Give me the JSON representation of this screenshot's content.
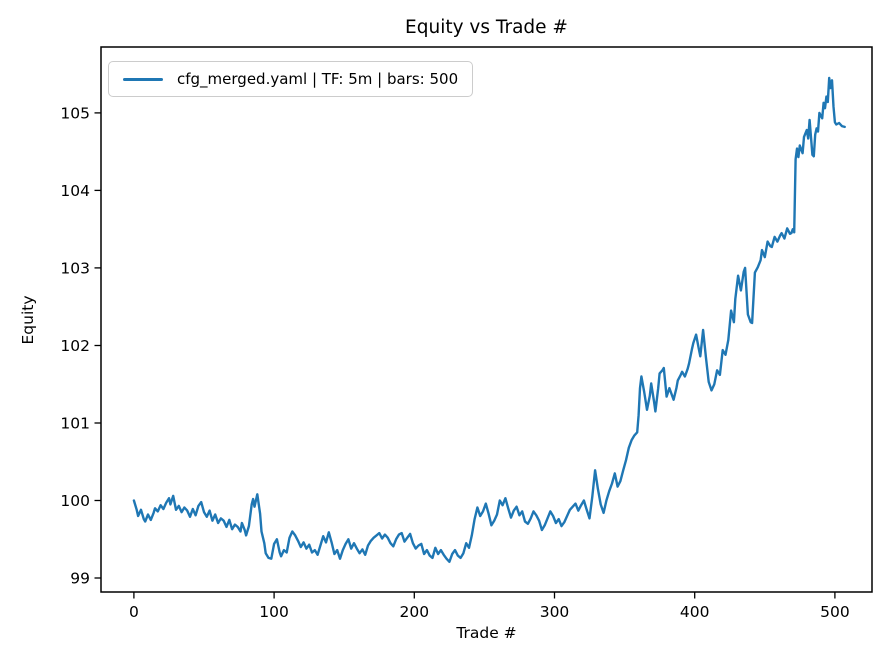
{
  "figure": {
    "title": "Equity vs Trade #",
    "xlabel": "Trade #",
    "ylabel": "Equity",
    "background_color": "#ffffff",
    "frame_color": "#000000"
  },
  "legend": {
    "label": "cfg_merged.yaml | TF: 5m | bars: 500",
    "line_color": "#1f77b4",
    "border_color": "#cccccc",
    "background_color": "#ffffff",
    "position": "upper left"
  },
  "chart_data": {
    "type": "line",
    "title": "Equity vs Trade #",
    "xlabel": "Trade #",
    "ylabel": "Equity",
    "xlim": [
      -23.5,
      526.5
    ],
    "ylim": [
      98.82,
      105.85
    ],
    "x_ticks": [
      0,
      100,
      200,
      300,
      400,
      500
    ],
    "y_ticks": [
      99,
      100,
      101,
      102,
      103,
      104,
      105
    ],
    "grid": false,
    "legend_position": "upper left",
    "line_width": 2.4,
    "series": [
      {
        "name": "cfg_merged.yaml | TF: 5m | bars: 500",
        "color": "#1f77b4",
        "points": [
          [
            0,
            100.0
          ],
          [
            2,
            99.88
          ],
          [
            3,
            99.8
          ],
          [
            5,
            99.88
          ],
          [
            7,
            99.76
          ],
          [
            8,
            99.73
          ],
          [
            10,
            99.82
          ],
          [
            12,
            99.75
          ],
          [
            14,
            99.84
          ],
          [
            15,
            99.9
          ],
          [
            17,
            99.86
          ],
          [
            19,
            99.94
          ],
          [
            21,
            99.89
          ],
          [
            23,
            99.97
          ],
          [
            25,
            100.03
          ],
          [
            26,
            99.95
          ],
          [
            28,
            100.06
          ],
          [
            30,
            99.88
          ],
          [
            32,
            99.93
          ],
          [
            34,
            99.85
          ],
          [
            36,
            99.91
          ],
          [
            38,
            99.87
          ],
          [
            40,
            99.79
          ],
          [
            42,
            99.89
          ],
          [
            44,
            99.81
          ],
          [
            46,
            99.93
          ],
          [
            48,
            99.98
          ],
          [
            50,
            99.85
          ],
          [
            52,
            99.79
          ],
          [
            54,
            99.87
          ],
          [
            56,
            99.74
          ],
          [
            58,
            99.82
          ],
          [
            60,
            99.71
          ],
          [
            62,
            99.77
          ],
          [
            64,
            99.74
          ],
          [
            66,
            99.66
          ],
          [
            68,
            99.75
          ],
          [
            70,
            99.63
          ],
          [
            72,
            99.69
          ],
          [
            74,
            99.66
          ],
          [
            76,
            99.6
          ],
          [
            77,
            99.71
          ],
          [
            79,
            99.62
          ],
          [
            80,
            99.55
          ],
          [
            82,
            99.67
          ],
          [
            84,
            99.95
          ],
          [
            85,
            100.02
          ],
          [
            86,
            99.92
          ],
          [
            88,
            100.08
          ],
          [
            90,
            99.83
          ],
          [
            91,
            99.6
          ],
          [
            93,
            99.45
          ],
          [
            94,
            99.32
          ],
          [
            96,
            99.26
          ],
          [
            98,
            99.25
          ],
          [
            100,
            99.44
          ],
          [
            102,
            99.5
          ],
          [
            104,
            99.33
          ],
          [
            105,
            99.28
          ],
          [
            107,
            99.36
          ],
          [
            109,
            99.33
          ],
          [
            111,
            99.52
          ],
          [
            113,
            99.6
          ],
          [
            115,
            99.55
          ],
          [
            117,
            99.48
          ],
          [
            119,
            99.4
          ],
          [
            121,
            99.46
          ],
          [
            123,
            99.38
          ],
          [
            125,
            99.43
          ],
          [
            127,
            99.33
          ],
          [
            129,
            99.36
          ],
          [
            131,
            99.3
          ],
          [
            133,
            99.42
          ],
          [
            135,
            99.54
          ],
          [
            137,
            99.46
          ],
          [
            139,
            99.59
          ],
          [
            141,
            99.46
          ],
          [
            143,
            99.31
          ],
          [
            145,
            99.36
          ],
          [
            147,
            99.25
          ],
          [
            149,
            99.36
          ],
          [
            151,
            99.44
          ],
          [
            153,
            99.5
          ],
          [
            155,
            99.38
          ],
          [
            157,
            99.45
          ],
          [
            159,
            99.38
          ],
          [
            161,
            99.32
          ],
          [
            163,
            99.37
          ],
          [
            165,
            99.3
          ],
          [
            167,
            99.42
          ],
          [
            169,
            99.48
          ],
          [
            171,
            99.52
          ],
          [
            173,
            99.55
          ],
          [
            175,
            99.58
          ],
          [
            177,
            99.51
          ],
          [
            179,
            99.56
          ],
          [
            181,
            99.52
          ],
          [
            183,
            99.45
          ],
          [
            185,
            99.41
          ],
          [
            187,
            99.5
          ],
          [
            189,
            99.56
          ],
          [
            191,
            99.58
          ],
          [
            193,
            99.47
          ],
          [
            195,
            99.52
          ],
          [
            197,
            99.57
          ],
          [
            199,
            99.45
          ],
          [
            201,
            99.38
          ],
          [
            203,
            99.42
          ],
          [
            205,
            99.44
          ],
          [
            207,
            99.31
          ],
          [
            209,
            99.36
          ],
          [
            211,
            99.29
          ],
          [
            213,
            99.26
          ],
          [
            215,
            99.39
          ],
          [
            217,
            99.31
          ],
          [
            219,
            99.36
          ],
          [
            221,
            99.3
          ],
          [
            223,
            99.25
          ],
          [
            225,
            99.21
          ],
          [
            227,
            99.31
          ],
          [
            229,
            99.36
          ],
          [
            231,
            99.29
          ],
          [
            233,
            99.26
          ],
          [
            235,
            99.32
          ],
          [
            237,
            99.45
          ],
          [
            239,
            99.39
          ],
          [
            241,
            99.55
          ],
          [
            243,
            99.76
          ],
          [
            245,
            99.91
          ],
          [
            247,
            99.8
          ],
          [
            249,
            99.86
          ],
          [
            251,
            99.96
          ],
          [
            253,
            99.83
          ],
          [
            255,
            99.68
          ],
          [
            257,
            99.74
          ],
          [
            259,
            99.82
          ],
          [
            261,
            100.0
          ],
          [
            263,
            99.94
          ],
          [
            265,
            100.03
          ],
          [
            267,
            99.9
          ],
          [
            269,
            99.78
          ],
          [
            271,
            99.87
          ],
          [
            273,
            99.92
          ],
          [
            275,
            99.81
          ],
          [
            277,
            99.86
          ],
          [
            279,
            99.73
          ],
          [
            281,
            99.7
          ],
          [
            283,
            99.77
          ],
          [
            285,
            99.86
          ],
          [
            287,
            99.81
          ],
          [
            289,
            99.74
          ],
          [
            291,
            99.62
          ],
          [
            293,
            99.68
          ],
          [
            295,
            99.77
          ],
          [
            297,
            99.86
          ],
          [
            299,
            99.8
          ],
          [
            301,
            99.71
          ],
          [
            303,
            99.76
          ],
          [
            305,
            99.67
          ],
          [
            307,
            99.72
          ],
          [
            309,
            99.8
          ],
          [
            311,
            99.88
          ],
          [
            313,
            99.92
          ],
          [
            315,
            99.96
          ],
          [
            317,
            99.87
          ],
          [
            319,
            99.94
          ],
          [
            321,
            100.0
          ],
          [
            323,
            99.88
          ],
          [
            325,
            99.77
          ],
          [
            327,
            100.05
          ],
          [
            329,
            100.39
          ],
          [
            331,
            100.15
          ],
          [
            333,
            99.95
          ],
          [
            335,
            99.84
          ],
          [
            337,
            100.0
          ],
          [
            339,
            100.12
          ],
          [
            341,
            100.22
          ],
          [
            343,
            100.35
          ],
          [
            345,
            100.18
          ],
          [
            347,
            100.25
          ],
          [
            349,
            100.39
          ],
          [
            351,
            100.52
          ],
          [
            353,
            100.68
          ],
          [
            355,
            100.78
          ],
          [
            357,
            100.84
          ],
          [
            359,
            100.88
          ],
          [
            360,
            101.1
          ],
          [
            361,
            101.45
          ],
          [
            362,
            101.6
          ],
          [
            364,
            101.4
          ],
          [
            366,
            101.17
          ],
          [
            368,
            101.35
          ],
          [
            369,
            101.51
          ],
          [
            371,
            101.28
          ],
          [
            372,
            101.15
          ],
          [
            374,
            101.45
          ],
          [
            375,
            101.64
          ],
          [
            377,
            101.68
          ],
          [
            378,
            101.71
          ],
          [
            380,
            101.34
          ],
          [
            382,
            101.45
          ],
          [
            384,
            101.35
          ],
          [
            385,
            101.3
          ],
          [
            387,
            101.45
          ],
          [
            388,
            101.55
          ],
          [
            390,
            101.62
          ],
          [
            391,
            101.66
          ],
          [
            393,
            101.6
          ],
          [
            395,
            101.7
          ],
          [
            396,
            101.77
          ],
          [
            398,
            101.95
          ],
          [
            399,
            102.03
          ],
          [
            401,
            102.14
          ],
          [
            403,
            101.95
          ],
          [
            404,
            101.86
          ],
          [
            406,
            102.2
          ],
          [
            408,
            101.85
          ],
          [
            410,
            101.53
          ],
          [
            412,
            101.42
          ],
          [
            414,
            101.5
          ],
          [
            416,
            101.68
          ],
          [
            418,
            101.62
          ],
          [
            420,
            101.94
          ],
          [
            422,
            101.88
          ],
          [
            424,
            102.07
          ],
          [
            426,
            102.45
          ],
          [
            428,
            102.3
          ],
          [
            429,
            102.6
          ],
          [
            431,
            102.9
          ],
          [
            433,
            102.71
          ],
          [
            435,
            102.95
          ],
          [
            436,
            103.0
          ],
          [
            438,
            102.4
          ],
          [
            440,
            102.3
          ],
          [
            441,
            102.29
          ],
          [
            443,
            102.94
          ],
          [
            445,
            103.01
          ],
          [
            447,
            103.1
          ],
          [
            448,
            103.23
          ],
          [
            450,
            103.14
          ],
          [
            452,
            103.34
          ],
          [
            454,
            103.28
          ],
          [
            455,
            103.27
          ],
          [
            457,
            103.4
          ],
          [
            459,
            103.34
          ],
          [
            461,
            103.42
          ],
          [
            462,
            103.45
          ],
          [
            464,
            103.38
          ],
          [
            466,
            103.51
          ],
          [
            468,
            103.44
          ],
          [
            469,
            103.45
          ],
          [
            470,
            103.5
          ],
          [
            471,
            103.46
          ],
          [
            472,
            104.4
          ],
          [
            473,
            104.54
          ],
          [
            474,
            104.43
          ],
          [
            475,
            104.58
          ],
          [
            477,
            104.48
          ],
          [
            478,
            104.69
          ],
          [
            480,
            104.78
          ],
          [
            481,
            104.67
          ],
          [
            482,
            104.91
          ],
          [
            484,
            104.46
          ],
          [
            485,
            104.44
          ],
          [
            486,
            104.72
          ],
          [
            487,
            104.8
          ],
          [
            488,
            104.76
          ],
          [
            489,
            105.0
          ],
          [
            491,
            104.93
          ],
          [
            492,
            105.13
          ],
          [
            493,
            105.06
          ],
          [
            494,
            105.21
          ],
          [
            495,
            105.14
          ],
          [
            496,
            105.45
          ],
          [
            497,
            105.32
          ],
          [
            498,
            105.42
          ],
          [
            499,
            105.08
          ],
          [
            500,
            104.88
          ],
          [
            501,
            104.85
          ],
          [
            503,
            104.87
          ],
          [
            505,
            104.83
          ],
          [
            507,
            104.82
          ]
        ]
      }
    ]
  }
}
